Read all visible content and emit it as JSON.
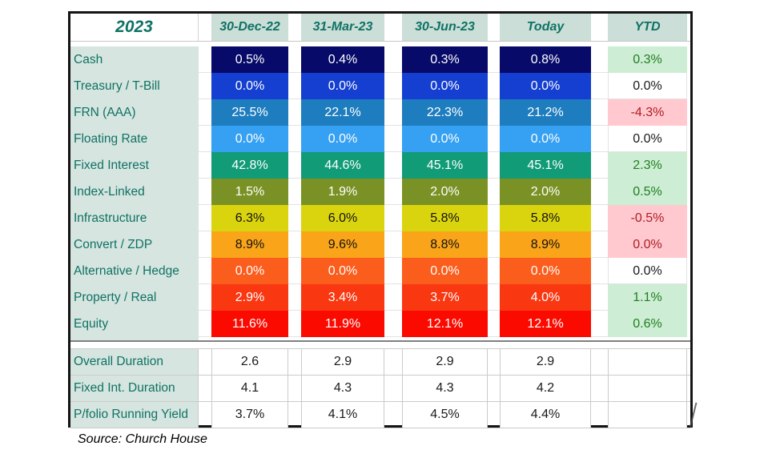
{
  "table": {
    "title": "2023",
    "column_headers": [
      "30-Dec-22",
      "31-Mar-23",
      "30-Jun-23",
      "Today",
      "YTD"
    ],
    "allocation_rows": [
      {
        "label": "Cash",
        "values": [
          "0.5%",
          "0.4%",
          "0.3%",
          "0.8%"
        ],
        "ytd": "0.3%",
        "ytd_style": "positive",
        "fill": "#070a68",
        "value_text_color": "#ffffff"
      },
      {
        "label": "Treasury / T-Bill",
        "values": [
          "0.0%",
          "0.0%",
          "0.0%",
          "0.0%"
        ],
        "ytd": "0.0%",
        "ytd_style": "neutral",
        "fill": "#153fd1",
        "value_text_color": "#ffffff"
      },
      {
        "label": "FRN (AAA)",
        "values": [
          "25.5%",
          "22.1%",
          "22.3%",
          "21.2%"
        ],
        "ytd": "-4.3%",
        "ytd_style": "negative",
        "fill": "#1e7dbf",
        "value_text_color": "#ffffff"
      },
      {
        "label": "Floating Rate",
        "values": [
          "0.0%",
          "0.0%",
          "0.0%",
          "0.0%"
        ],
        "ytd": "0.0%",
        "ytd_style": "neutral",
        "fill": "#36a0f2",
        "value_text_color": "#ffffff"
      },
      {
        "label": "Fixed Interest",
        "values": [
          "42.8%",
          "44.6%",
          "45.1%",
          "45.1%"
        ],
        "ytd": "2.3%",
        "ytd_style": "positive",
        "fill": "#119b77",
        "value_text_color": "#ffffff"
      },
      {
        "label": "Index-Linked",
        "values": [
          "1.5%",
          "1.9%",
          "2.0%",
          "2.0%"
        ],
        "ytd": "0.5%",
        "ytd_style": "positive",
        "fill": "#7a9225",
        "value_text_color": "#ffffff"
      },
      {
        "label": "Infrastructure",
        "values": [
          "6.3%",
          "6.0%",
          "5.8%",
          "5.8%"
        ],
        "ytd": "-0.5%",
        "ytd_style": "negative",
        "fill": "#dad40f",
        "value_text_color": "#111111"
      },
      {
        "label": "Convert / ZDP",
        "values": [
          "8.9%",
          "9.6%",
          "8.8%",
          "8.9%"
        ],
        "ytd": "0.0%",
        "ytd_style": "negative",
        "fill": "#faa519",
        "value_text_color": "#111111"
      },
      {
        "label": "Alternative / Hedge",
        "values": [
          "0.0%",
          "0.0%",
          "0.0%",
          "0.0%"
        ],
        "ytd": "0.0%",
        "ytd_style": "neutral",
        "fill": "#fb5d1d",
        "value_text_color": "#ffffff"
      },
      {
        "label": "Property / Real",
        "values": [
          "2.9%",
          "3.4%",
          "3.7%",
          "4.0%"
        ],
        "ytd": "1.1%",
        "ytd_style": "positive",
        "fill": "#f93812",
        "value_text_color": "#ffffff"
      },
      {
        "label": "Equity",
        "values": [
          "11.6%",
          "11.9%",
          "12.1%",
          "12.1%"
        ],
        "ytd": "0.6%",
        "ytd_style": "positive",
        "fill": "#fb0a00",
        "value_text_color": "#ffffff"
      }
    ],
    "summary_rows": [
      {
        "label": "Overall Duration",
        "values": [
          "2.6",
          "2.9",
          "2.9",
          "2.9"
        ],
        "ytd": ""
      },
      {
        "label": "Fixed Int. Duration",
        "values": [
          "4.1",
          "4.3",
          "4.3",
          "4.2"
        ],
        "ytd": ""
      },
      {
        "label": "P/folio Running Yield",
        "values": [
          "3.7%",
          "4.1%",
          "4.5%",
          "4.4%"
        ],
        "ytd": ""
      }
    ]
  },
  "palette": {
    "header_text": "#0f7265",
    "header_bg": "#cbded7",
    "label_bg": "#d6e5df",
    "ytd_positive_bg": "#cdedd4",
    "ytd_positive_text": "#217f21",
    "ytd_negative_bg": "#ffc9cf",
    "ytd_negative_text": "#af1e23",
    "section_line": "#7f7f7f",
    "table_border": "#141414"
  },
  "source": "Source: Church House"
}
